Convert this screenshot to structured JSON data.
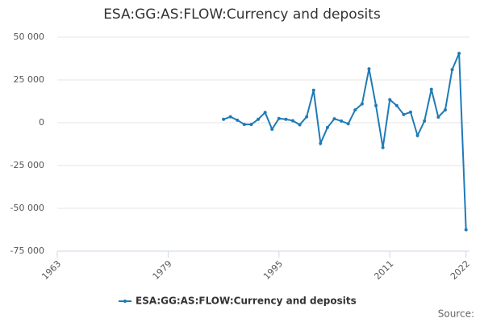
{
  "chart_data": {
    "type": "line",
    "title": "ESA:GG:AS:FLOW:Currency and deposits",
    "x": [
      1987,
      1988,
      1989,
      1990,
      1991,
      1992,
      1993,
      1994,
      1995,
      1996,
      1997,
      1998,
      1999,
      2000,
      2001,
      2002,
      2003,
      2004,
      2005,
      2006,
      2007,
      2008,
      2009,
      2010,
      2011,
      2012,
      2013,
      2014,
      2015,
      2016,
      2017,
      2018,
      2019,
      2020,
      2021,
      2022
    ],
    "series": [
      {
        "name": "ESA:GG:AS:FLOW:Currency and deposits",
        "color": "#1f7bb6",
        "values": [
          2000,
          3500,
          1500,
          -1000,
          -1000,
          2000,
          6000,
          -3800,
          2500,
          2000,
          1200,
          -1200,
          3500,
          19000,
          -12000,
          -2800,
          2300,
          1000,
          -600,
          7500,
          11000,
          31500,
          10000,
          -14500,
          13500,
          10000,
          4800,
          6200,
          -7500,
          1000,
          19500,
          3300,
          7500,
          31000,
          40500,
          -62500
        ]
      }
    ],
    "xlim": [
      1963,
      2022.5
    ],
    "xticks": [
      1963,
      1979,
      1995,
      2011,
      2022
    ],
    "ylim": [
      -75000,
      50000
    ],
    "yticks": [
      {
        "value": -75000,
        "label": "-75 000"
      },
      {
        "value": -50000,
        "label": "-50 000"
      },
      {
        "value": -25000,
        "label": "-25 000"
      },
      {
        "value": 0,
        "label": "0"
      },
      {
        "value": 25000,
        "label": "25 000"
      },
      {
        "value": 50000,
        "label": "50 000"
      }
    ],
    "grid": true,
    "legend": "bottom",
    "source": "Source:"
  }
}
